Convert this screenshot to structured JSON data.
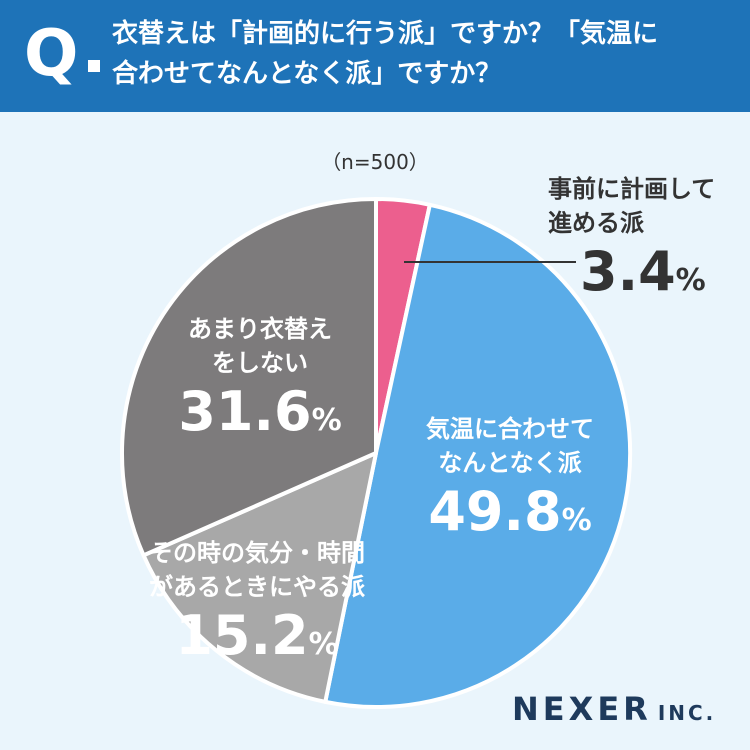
{
  "question": {
    "mark": "Q",
    "line1": "衣替えは「計画的に行う派」ですか？「気温に",
    "line2": "合わせてなんとなく派」ですか？"
  },
  "sample_size": "（n=500）",
  "brand": {
    "name": "NEXER",
    "suffix": "INC."
  },
  "colors": {
    "header": "#1e73b8",
    "background": "#eaf5fc"
  },
  "chart_data": {
    "type": "pie",
    "title": "衣替えは「計画的に行う派」ですか？「気温に合わせてなんとなく派」ですか？",
    "unit": "%",
    "start": "12 o'clock, clockwise",
    "slices": [
      {
        "label": "事前に計画して進める派",
        "label_lines": [
          "事前に計画して",
          "進める派"
        ],
        "value": 3.4,
        "color": "#ec5f8e"
      },
      {
        "label": "気温に合わせてなんとなく派",
        "label_lines": [
          "気温に合わせて",
          "なんとなく派"
        ],
        "value": 49.8,
        "color": "#5aace8"
      },
      {
        "label": "その時の気分・時間があるときにやる派",
        "label_lines": [
          "その時の気分・時間",
          "があるときにやる派"
        ],
        "value": 15.2,
        "color": "#a8a8a8"
      },
      {
        "label": "あまり衣替えをしない",
        "label_lines": [
          "あまり衣替え",
          "をしない"
        ],
        "value": 31.6,
        "color": "#7d7b7c"
      }
    ]
  }
}
